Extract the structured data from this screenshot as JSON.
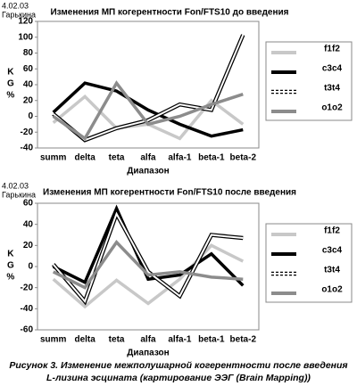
{
  "chart_data": [
    {
      "type": "line",
      "date": "4.02.03",
      "subject": "Гарькина",
      "title": "Изменения МП когерентности Fon/FTS10 до введения",
      "ylabel": "KG%",
      "xlabel": "Диапазон",
      "categories": [
        "summ",
        "delta",
        "teta",
        "alfa",
        "alfa-1",
        "beta-1",
        "beta-2"
      ],
      "ylim": [
        -40,
        120
      ],
      "yticks": [
        -40,
        -20,
        0,
        20,
        40,
        60,
        80,
        100,
        120
      ],
      "grid": false,
      "series": [
        {
          "name": "f1f2",
          "color": "#c8c8c8",
          "values": [
            -8,
            25,
            -15,
            -10,
            -28,
            20,
            -10
          ]
        },
        {
          "name": "c3c4",
          "color": "#000000",
          "values": [
            5,
            42,
            32,
            8,
            -10,
            -25,
            -17
          ]
        },
        {
          "name": "t3t4",
          "color": "#ffffff",
          "outline": "#000000",
          "values": [
            3,
            -30,
            -15,
            -5,
            15,
            8,
            103
          ]
        },
        {
          "name": "o1o2",
          "color": "#8c8c8c",
          "values": [
            0,
            -28,
            42,
            -10,
            0,
            15,
            28
          ]
        }
      ]
    },
    {
      "type": "line",
      "date": "4.02.03",
      "subject": "Гарькина",
      "title": "Изменения МП когерентности Fon/FTS10 после введения",
      "ylabel": "KG%",
      "xlabel": "Диапазон",
      "categories": [
        "summ",
        "delta",
        "teta",
        "alfa",
        "alfa-1",
        "beta-1",
        "beta-2"
      ],
      "ylim": [
        -60,
        60
      ],
      "yticks": [
        -60,
        -40,
        -20,
        0,
        20,
        40,
        60
      ],
      "grid": false,
      "series": [
        {
          "name": "f1f2",
          "color": "#c8c8c8",
          "values": [
            -12,
            -38,
            -13,
            -35,
            -12,
            20,
            5
          ]
        },
        {
          "name": "c3c4",
          "color": "#000000",
          "values": [
            0,
            -15,
            55,
            -12,
            -8,
            12,
            -18
          ]
        },
        {
          "name": "t3t4",
          "color": "#ffffff",
          "outline": "#000000",
          "values": [
            2,
            -33,
            50,
            -5,
            -28,
            30,
            27
          ]
        },
        {
          "name": "o1o2",
          "color": "#8c8c8c",
          "values": [
            -5,
            -20,
            23,
            -8,
            -5,
            -10,
            -12
          ]
        }
      ]
    }
  ],
  "caption": [
    "Рисунок 3. Изменение межполушарной когерентности после введения",
    "L-лизина эсцината (картирование ЭЭГ (Brain Mapping))"
  ]
}
